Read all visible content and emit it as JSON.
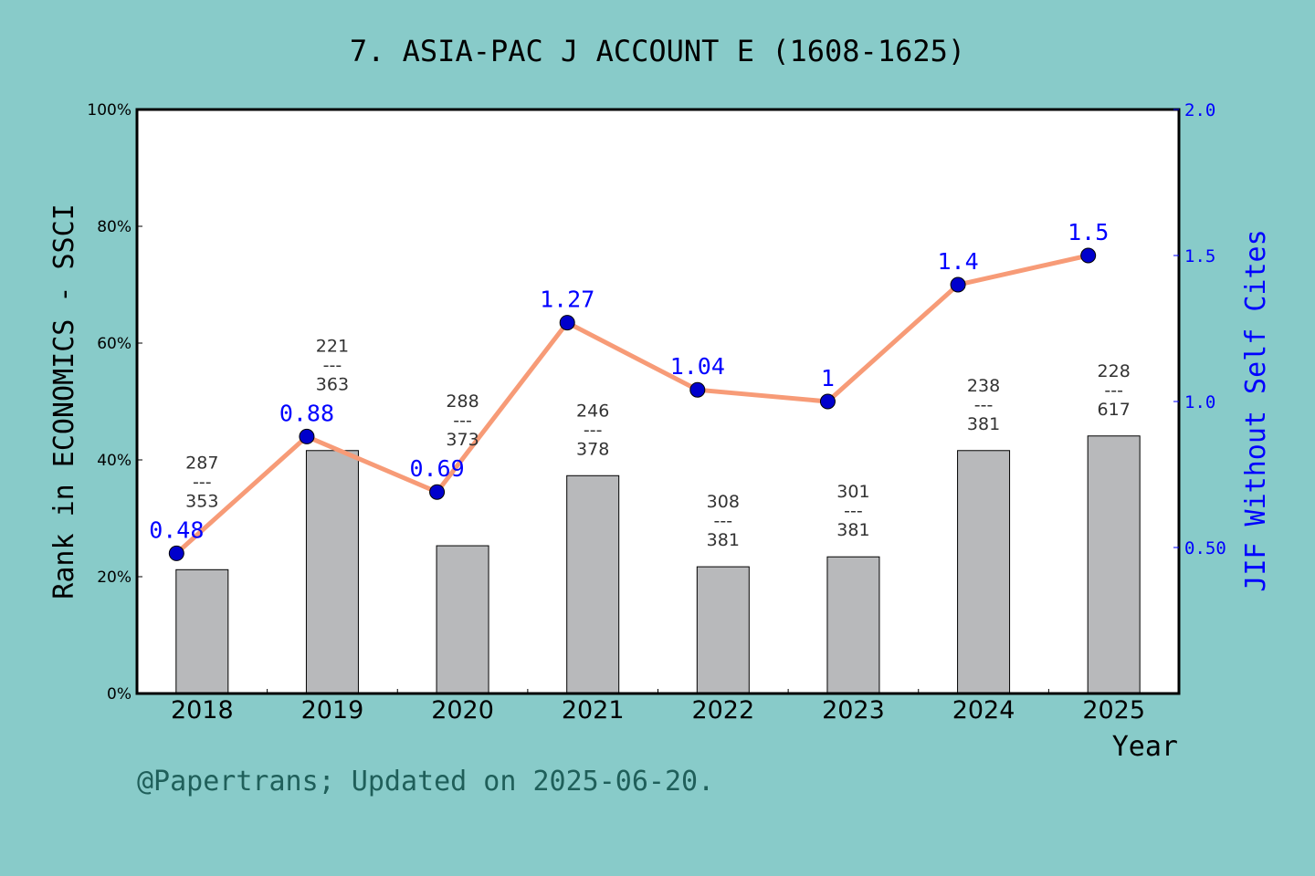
{
  "chart_data": {
    "type": "bar+line",
    "title": "7. ASIA-PAC J ACCOUNT E (1608-1625)",
    "xlabel": "Year",
    "ylabel": "Rank in ECONOMICS - SSCI",
    "ylabel_right": "JIF Without Self Cites",
    "categories": [
      "2018",
      "2019",
      "2020",
      "2021",
      "2022",
      "2023",
      "2024",
      "2025"
    ],
    "ylim": [
      0,
      100
    ],
    "ylim_right": [
      0,
      2.0
    ],
    "yticks": [
      "0%",
      "20%",
      "40%",
      "60%",
      "80%",
      "100%"
    ],
    "yticks_right": [
      "0.50",
      "1.0",
      "1.5",
      "2.0"
    ],
    "bars": {
      "values": [
        21.2,
        41.6,
        25.3,
        37.3,
        21.7,
        23.4,
        41.6,
        44.1
      ],
      "rank_labels": [
        {
          "rank": "287",
          "dash": "---",
          "total": "353"
        },
        {
          "rank": "221",
          "dash": "---",
          "total": "363"
        },
        {
          "rank": "288",
          "dash": "---",
          "total": "373"
        },
        {
          "rank": "246",
          "dash": "---",
          "total": "378"
        },
        {
          "rank": "308",
          "dash": "---",
          "total": "381"
        },
        {
          "rank": "301",
          "dash": "---",
          "total": "381"
        },
        {
          "rank": "238",
          "dash": "---",
          "total": "381"
        },
        {
          "rank": "228",
          "dash": "---",
          "total": "617"
        }
      ],
      "color": "#b8b9bb"
    },
    "line": {
      "values": [
        0.48,
        0.88,
        0.69,
        1.27,
        1.04,
        1,
        1.4,
        1.5
      ],
      "labels": [
        "0.48",
        "0.88",
        "0.69",
        "1.27",
        "1.04",
        "1",
        "1.4",
        "1.5"
      ],
      "line_color": "#f79b77",
      "marker_color": "#0000cc",
      "label_color": "#0000ff"
    },
    "grid": false,
    "legend": "none"
  },
  "footer": "@Papertrans; Updated on 2025-06-20.",
  "colors": {
    "background": "#88cbc9",
    "footer": "#1f5f5a"
  }
}
